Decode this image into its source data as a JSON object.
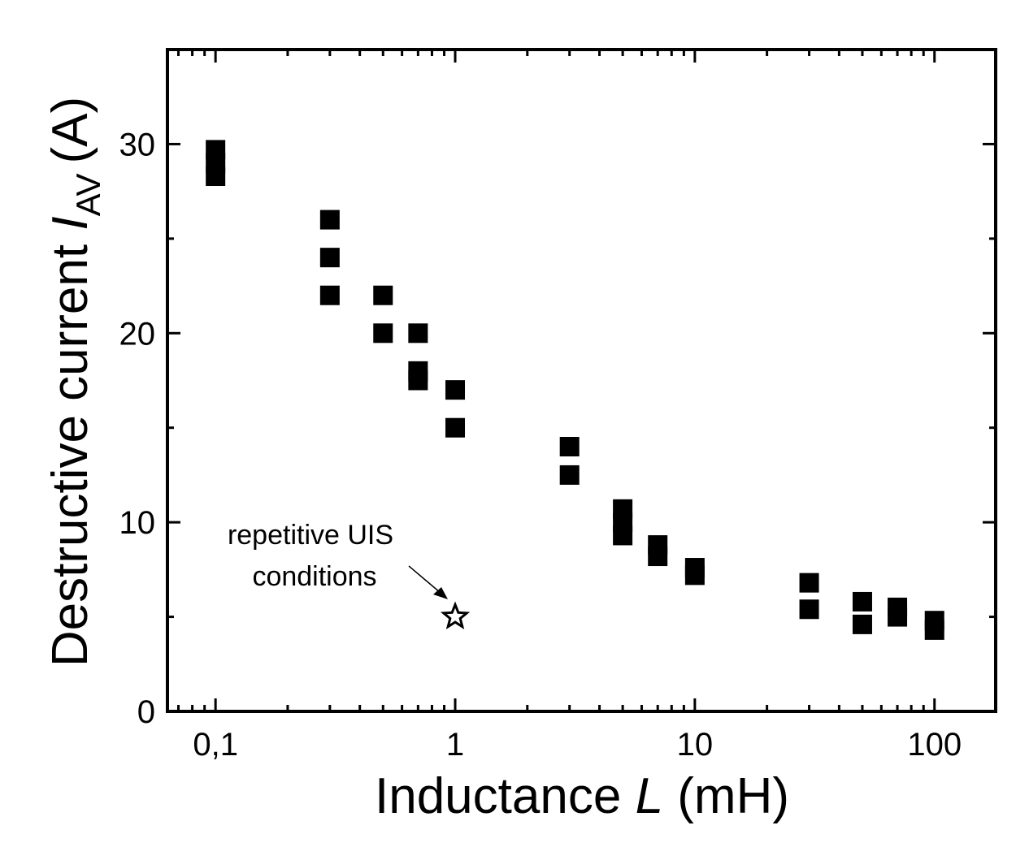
{
  "chart_data": {
    "type": "scatter",
    "x_scale": "log",
    "xlabel_main": "Inductance",
    "xlabel_var": "L",
    "xlabel_unit": "(mH)",
    "ylabel_main": "Destructive current",
    "ylabel_var": "I",
    "ylabel_sub": "AV",
    "ylabel_unit": "(A)",
    "xlim": [
      0.063,
      180
    ],
    "ylim": [
      0,
      35
    ],
    "x_ticks": [
      {
        "value": 0.1,
        "label": "0,1"
      },
      {
        "value": 1,
        "label": "1"
      },
      {
        "value": 10,
        "label": "10"
      },
      {
        "value": 100,
        "label": "100"
      }
    ],
    "y_ticks": [
      {
        "value": 0,
        "label": "0"
      },
      {
        "value": 10,
        "label": "10"
      },
      {
        "value": 20,
        "label": "20"
      },
      {
        "value": 30,
        "label": "30"
      }
    ],
    "series": [
      {
        "name": "Destructive current",
        "marker": "square",
        "color": "#000000",
        "points": [
          {
            "x": 0.1,
            "y": 29.7
          },
          {
            "x": 0.1,
            "y": 29.0
          },
          {
            "x": 0.1,
            "y": 28.3
          },
          {
            "x": 0.3,
            "y": 26.0
          },
          {
            "x": 0.3,
            "y": 24.0
          },
          {
            "x": 0.3,
            "y": 22.0
          },
          {
            "x": 0.5,
            "y": 22.0
          },
          {
            "x": 0.5,
            "y": 20.0
          },
          {
            "x": 0.7,
            "y": 20.0
          },
          {
            "x": 0.7,
            "y": 18.0
          },
          {
            "x": 0.7,
            "y": 17.5
          },
          {
            "x": 1,
            "y": 17.0
          },
          {
            "x": 1,
            "y": 15.0
          },
          {
            "x": 3,
            "y": 14.0
          },
          {
            "x": 3,
            "y": 12.5
          },
          {
            "x": 5,
            "y": 10.7
          },
          {
            "x": 5,
            "y": 10.0
          },
          {
            "x": 5,
            "y": 9.3
          },
          {
            "x": 7,
            "y": 8.8
          },
          {
            "x": 7,
            "y": 8.2
          },
          {
            "x": 10,
            "y": 7.6
          },
          {
            "x": 10,
            "y": 7.2
          },
          {
            "x": 30,
            "y": 6.8
          },
          {
            "x": 30,
            "y": 5.4
          },
          {
            "x": 50,
            "y": 5.8
          },
          {
            "x": 50,
            "y": 4.6
          },
          {
            "x": 70,
            "y": 5.5
          },
          {
            "x": 70,
            "y": 5.0
          },
          {
            "x": 100,
            "y": 4.8
          },
          {
            "x": 100,
            "y": 4.3
          }
        ]
      },
      {
        "name": "repetitive UIS conditions",
        "marker": "star",
        "color": "#000000",
        "points": [
          {
            "x": 1,
            "y": 5.0
          }
        ]
      }
    ],
    "annotations": [
      {
        "line1": "repetitive UIS",
        "line2": "conditions",
        "target_x": 1,
        "target_y": 5.0
      }
    ],
    "grid": false,
    "legend": "none"
  }
}
